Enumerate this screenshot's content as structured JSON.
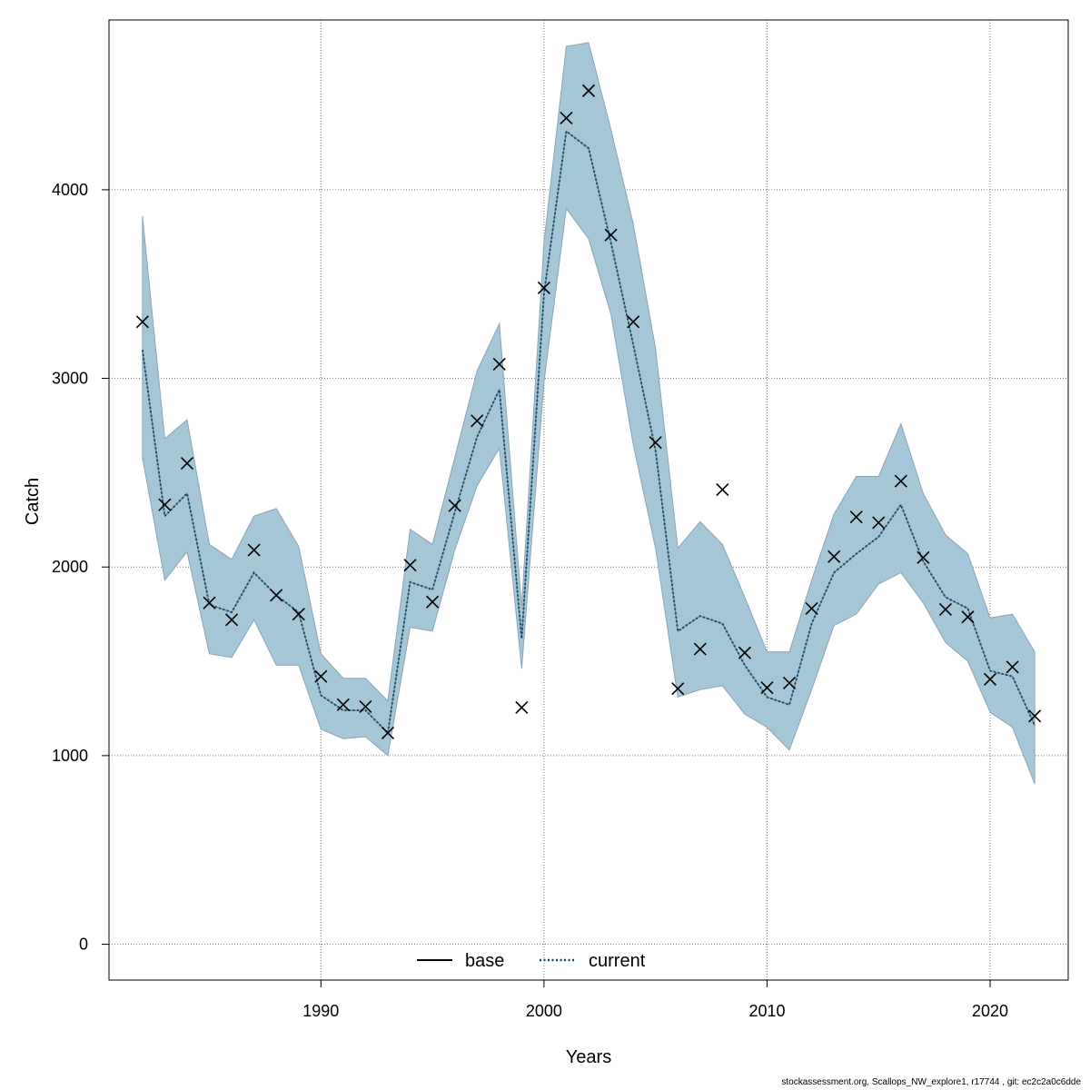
{
  "chart_data": {
    "type": "line",
    "title": "",
    "xlabel": "Years",
    "ylabel": "Catch",
    "xlim": [
      1980.5,
      2023.5
    ],
    "ylim": [
      -190,
      4900
    ],
    "x_ticks": [
      1990,
      2000,
      2010,
      2020
    ],
    "y_ticks": [
      0,
      1000,
      2000,
      3000,
      4000
    ],
    "grid": true,
    "legend_position": "bottom-center",
    "colors": {
      "band": "#a5c6d6",
      "band_edge": "#8ca5b3",
      "current_line": "#0a4a73",
      "base_line": "#000000",
      "observed_marker": "#000000"
    },
    "x": [
      1982,
      1983,
      1984,
      1985,
      1986,
      1987,
      1988,
      1989,
      1990,
      1991,
      1992,
      1993,
      1994,
      1995,
      1996,
      1997,
      1998,
      1999,
      2000,
      2001,
      2002,
      2003,
      2004,
      2005,
      2006,
      2007,
      2008,
      2009,
      2010,
      2011,
      2012,
      2013,
      2014,
      2015,
      2016,
      2017,
      2018,
      2019,
      2020,
      2021,
      2022
    ],
    "series": [
      {
        "name": "base",
        "style": "solid",
        "values": [
          3150,
          2270,
          2390,
          1800,
          1760,
          1970,
          1850,
          1760,
          1320,
          1240,
          1240,
          1120,
          1920,
          1880,
          2290,
          2690,
          2940,
          1620,
          3450,
          4310,
          4220,
          3720,
          3180,
          2620,
          1660,
          1740,
          1700,
          1480,
          1310,
          1270,
          1700,
          1970,
          2070,
          2160,
          2330,
          2030,
          1840,
          1780,
          1450,
          1420,
          1160
        ]
      },
      {
        "name": "current",
        "style": "dotted",
        "values": [
          3150,
          2270,
          2390,
          1800,
          1760,
          1970,
          1850,
          1760,
          1320,
          1240,
          1240,
          1120,
          1920,
          1880,
          2290,
          2690,
          2940,
          1620,
          3450,
          4310,
          4220,
          3720,
          3180,
          2620,
          1660,
          1740,
          1700,
          1480,
          1310,
          1270,
          1700,
          1970,
          2070,
          2160,
          2330,
          2030,
          1840,
          1780,
          1450,
          1420,
          1160
        ]
      }
    ],
    "interval_upper": [
      3860,
      2680,
      2780,
      2120,
      2040,
      2270,
      2310,
      2110,
      1540,
      1410,
      1410,
      1290,
      2200,
      2120,
      2580,
      3040,
      3290,
      1790,
      3720,
      4760,
      4780,
      4320,
      3820,
      3160,
      2100,
      2240,
      2120,
      1840,
      1550,
      1550,
      1930,
      2280,
      2480,
      2480,
      2760,
      2390,
      2170,
      2070,
      1730,
      1750,
      1550
    ],
    "interval_lower": [
      2580,
      1930,
      2080,
      1540,
      1520,
      1720,
      1480,
      1480,
      1140,
      1090,
      1100,
      1000,
      1680,
      1660,
      2090,
      2430,
      2630,
      1460,
      2980,
      3900,
      3740,
      3340,
      2650,
      2100,
      1310,
      1350,
      1370,
      1220,
      1150,
      1030,
      1350,
      1690,
      1750,
      1910,
      1970,
      1810,
      1600,
      1500,
      1230,
      1150,
      850
    ],
    "observed": [
      3300,
      2330,
      2550,
      1810,
      1720,
      2090,
      1850,
      1750,
      1420,
      1270,
      1260,
      1120,
      2010,
      1815,
      2325,
      2775,
      3075,
      1255,
      3480,
      4380,
      4525,
      3760,
      3300,
      2660,
      1355,
      1565,
      2410,
      1545,
      1360,
      1385,
      1780,
      2055,
      2265,
      2235,
      2455,
      2050,
      1775,
      1735,
      1405,
      1470,
      1210
    ]
  },
  "legend": {
    "base": "base",
    "current": "current"
  },
  "footer": "stockassessment.org, Scallops_NW_explore1, r17744 , git: ec2c2a0c6dde"
}
